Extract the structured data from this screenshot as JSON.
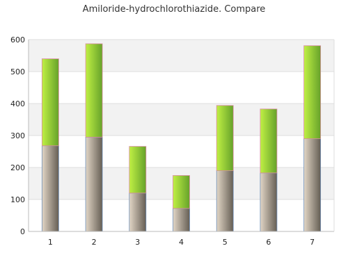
{
  "chart_data": {
    "type": "bar",
    "stacked": true,
    "title": "Amiloride-hydrochlorothiazide. Compare",
    "categories": [
      "1",
      "2",
      "3",
      "4",
      "5",
      "6",
      "7"
    ],
    "series": [
      {
        "values": [
          268,
          295,
          120,
          72,
          190,
          183,
          290
        ]
      },
      {
        "values": [
          272,
          292,
          146,
          103,
          204,
          200,
          291
        ]
      }
    ],
    "ylim": [
      0,
      600
    ],
    "yticks": [
      0,
      100,
      200,
      300,
      400,
      500,
      600
    ],
    "grid": true,
    "legend": "none"
  },
  "colors": {
    "series_bottom_light": "#d9cdbc",
    "series_bottom_dark": "#6b6459",
    "series_top_light": "#b6ec3c",
    "series_top_dark": "#6aa82a",
    "band": "#f2f2f2",
    "grid": "#dddddd"
  }
}
